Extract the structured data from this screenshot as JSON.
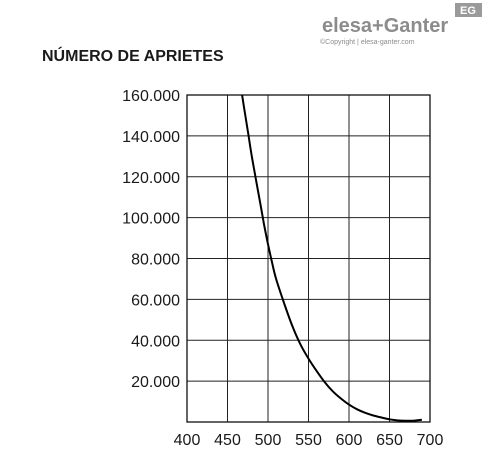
{
  "logo": {
    "brand_name": "elesa+Ganter",
    "badge": "EG",
    "copyright": "©Copyright | elesa-ganter.com"
  },
  "chart_data": {
    "type": "line",
    "title": "NÚMERO DE APRIETES",
    "xlabel": "",
    "ylabel": "",
    "xlim": [
      400,
      700
    ],
    "ylim": [
      0,
      160000
    ],
    "x_ticks": [
      "400",
      "450",
      "500",
      "550",
      "600",
      "650",
      "700"
    ],
    "y_ticks": [
      "20.000",
      "40.000",
      "60.000",
      "80.000",
      "100.000",
      "120.000",
      "140.000",
      "160.000"
    ],
    "grid": true,
    "series": [
      {
        "x": [
          468,
          472,
          476,
          480,
          485,
          490,
          495,
          500,
          505,
          510,
          520,
          530,
          540,
          550,
          560,
          570,
          580,
          590,
          600,
          610,
          620,
          630,
          640,
          650,
          660,
          670,
          680,
          690
        ],
        "y": [
          160000,
          150000,
          140000,
          130000,
          119000,
          108000,
          97000,
          87000,
          78000,
          70000,
          58000,
          47000,
          38000,
          31000,
          25000,
          19500,
          15000,
          11500,
          8500,
          6200,
          4500,
          3200,
          2200,
          1300,
          800,
          600,
          700,
          1100
        ]
      }
    ]
  }
}
